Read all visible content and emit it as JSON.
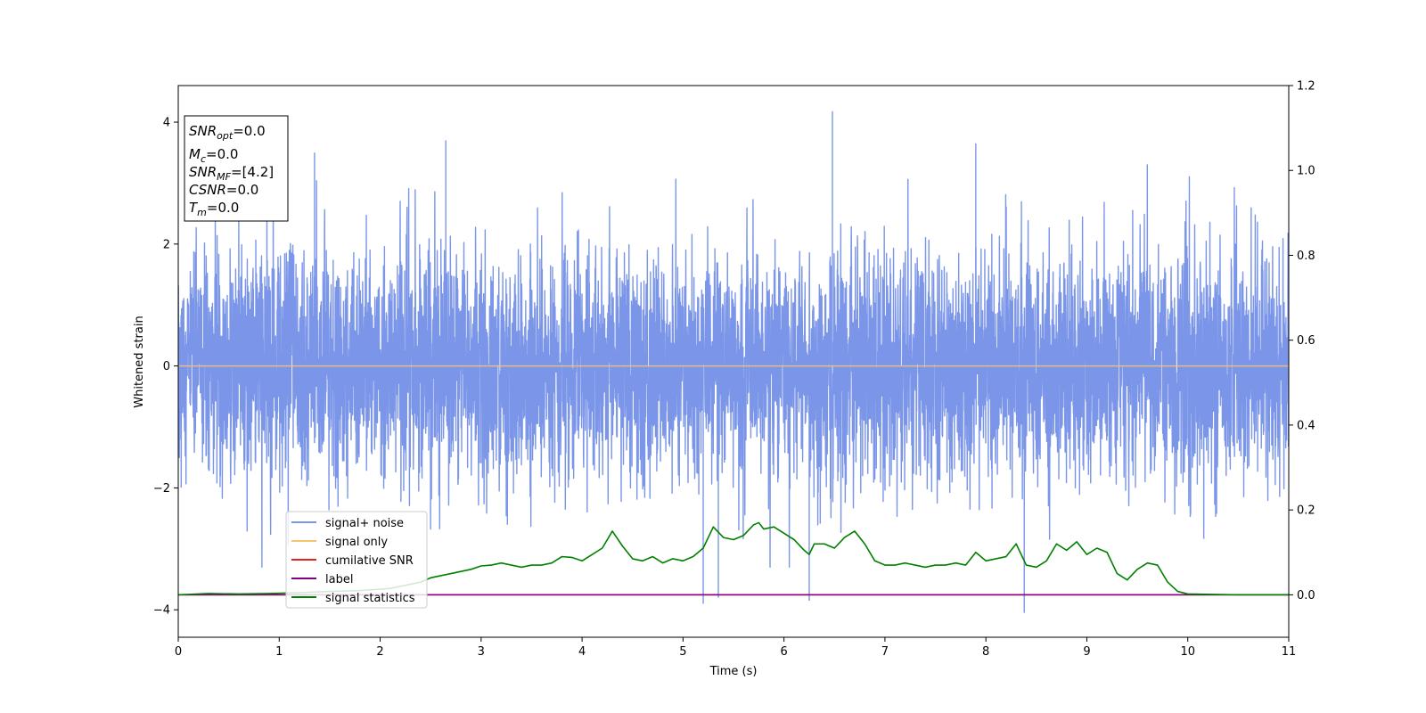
{
  "chart_data": {
    "type": "line",
    "xlabel": "Time (s)",
    "ylabel": "Whitened strain",
    "xlim": [
      0,
      11
    ],
    "ylim": [
      -4.45,
      4.6
    ],
    "y2lim": [
      -0.1,
      1.2
    ],
    "x_ticks": [
      "0",
      "1",
      "2",
      "3",
      "4",
      "5",
      "6",
      "7",
      "8",
      "9",
      "10",
      "11"
    ],
    "y_ticks": [
      "−4",
      "−2",
      "0",
      "2",
      "4"
    ],
    "y2_ticks": [
      "0.0",
      "0.2",
      "0.4",
      "0.6",
      "0.8",
      "1.0",
      "1.2"
    ],
    "grid": false,
    "legend_position": "lower-left",
    "annotation": {
      "lines": [
        {
          "var": "SNR",
          "sub": "opt",
          "value": "=0.0"
        },
        {
          "var": "M",
          "sub": "c",
          "value": "=0.0"
        },
        {
          "var": "SNR",
          "sub": "MF",
          "value": "=[4.2]"
        },
        {
          "var": "CSNR",
          "sub": "",
          "value": "=0.0"
        },
        {
          "var": "T",
          "sub": "m",
          "value": "=0.0"
        }
      ]
    },
    "series": [
      {
        "name": "signal+ noise",
        "axis": "left",
        "color": "#7b96e8",
        "note": "whitened noise, approx. gaussian, amplitude range about -4 to 4.2",
        "spike_peaks": [
          {
            "x": 2.65,
            "y": 3.7
          },
          {
            "x": 6.48,
            "y": 4.18
          },
          {
            "x": 7.9,
            "y": 3.65
          },
          {
            "x": 1.35,
            "y": 3.5
          },
          {
            "x": 5.2,
            "y": -3.9
          },
          {
            "x": 8.38,
            "y": -4.05
          },
          {
            "x": 6.25,
            "y": -3.85
          },
          {
            "x": 5.35,
            "y": -3.8
          }
        ]
      },
      {
        "name": "signal only",
        "axis": "left",
        "color": "#f5c46e",
        "x": [
          0,
          11
        ],
        "y": [
          0,
          0
        ]
      },
      {
        "name": "cumilative SNR",
        "axis": "right",
        "color": "#e8221a",
        "x": [
          0,
          11
        ],
        "y": [
          0,
          0
        ]
      },
      {
        "name": "label",
        "axis": "right",
        "color": "#800080",
        "x": [
          0,
          11
        ],
        "y": [
          0,
          0
        ]
      },
      {
        "name": "signal statistics",
        "axis": "right",
        "color": "#008000",
        "x": [
          0,
          0.3,
          0.6,
          0.9,
          1.2,
          1.5,
          1.8,
          2.1,
          2.4,
          2.5,
          2.6,
          2.7,
          2.8,
          2.9,
          3.0,
          3.1,
          3.2,
          3.3,
          3.4,
          3.5,
          3.6,
          3.7,
          3.8,
          3.9,
          4.0,
          4.1,
          4.2,
          4.3,
          4.4,
          4.5,
          4.6,
          4.7,
          4.8,
          4.9,
          5.0,
          5.1,
          5.2,
          5.3,
          5.4,
          5.5,
          5.6,
          5.7,
          5.75,
          5.8,
          5.9,
          6.0,
          6.1,
          6.2,
          6.25,
          6.3,
          6.4,
          6.5,
          6.6,
          6.7,
          6.8,
          6.9,
          7.0,
          7.1,
          7.2,
          7.3,
          7.4,
          7.5,
          7.6,
          7.7,
          7.8,
          7.9,
          8.0,
          8.1,
          8.2,
          8.3,
          8.4,
          8.5,
          8.6,
          8.7,
          8.8,
          8.9,
          9.0,
          9.1,
          9.2,
          9.3,
          9.4,
          9.5,
          9.6,
          9.7,
          9.8,
          9.9,
          10.0,
          10.5,
          11.0
        ],
        "y": [
          0.0,
          0.003,
          0.002,
          0.003,
          0.005,
          0.008,
          0.01,
          0.015,
          0.03,
          0.04,
          0.045,
          0.05,
          0.055,
          0.06,
          0.068,
          0.07,
          0.075,
          0.07,
          0.065,
          0.07,
          0.07,
          0.075,
          0.09,
          0.088,
          0.08,
          0.095,
          0.11,
          0.15,
          0.115,
          0.085,
          0.08,
          0.09,
          0.075,
          0.085,
          0.08,
          0.09,
          0.11,
          0.16,
          0.135,
          0.13,
          0.14,
          0.165,
          0.17,
          0.155,
          0.16,
          0.145,
          0.13,
          0.105,
          0.095,
          0.12,
          0.12,
          0.11,
          0.135,
          0.15,
          0.12,
          0.08,
          0.07,
          0.07,
          0.075,
          0.07,
          0.065,
          0.07,
          0.07,
          0.075,
          0.07,
          0.1,
          0.08,
          0.085,
          0.09,
          0.12,
          0.07,
          0.065,
          0.08,
          0.12,
          0.105,
          0.125,
          0.095,
          0.11,
          0.1,
          0.05,
          0.035,
          0.06,
          0.075,
          0.07,
          0.03,
          0.008,
          0.002,
          0.0,
          0.0
        ]
      }
    ]
  }
}
